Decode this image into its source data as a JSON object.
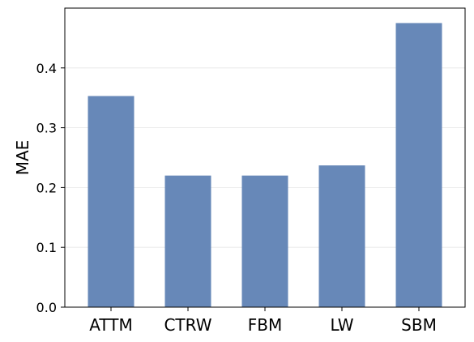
{
  "chart_data": {
    "type": "bar",
    "title": "",
    "xlabel": "",
    "ylabel": "MAE",
    "categories": [
      "ATTM",
      "CTRW",
      "FBM",
      "LW",
      "SBM"
    ],
    "values": [
      0.353,
      0.22,
      0.22,
      0.237,
      0.475
    ],
    "ylim": [
      0,
      0.5
    ],
    "yticks": [
      "0.0",
      "0.1",
      "0.2",
      "0.3",
      "0.4"
    ],
    "grid": "horizontal",
    "legend": "none",
    "bar_color": "#6788b8"
  }
}
